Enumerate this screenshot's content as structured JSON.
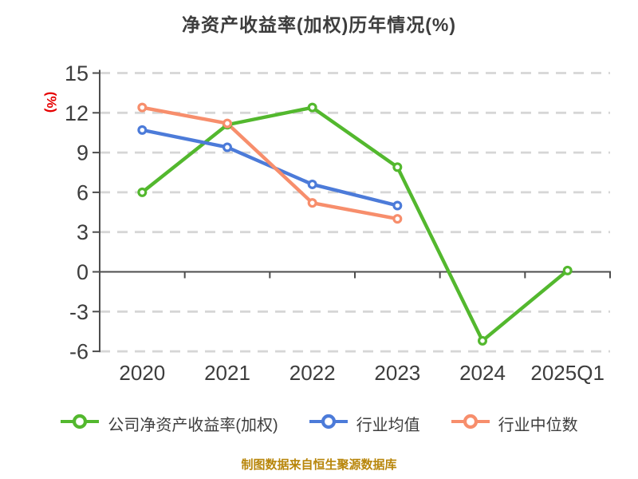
{
  "title": "净资产收益率(加权)历年情况(%)",
  "footer": "制图数据来自恒生聚源数据库",
  "colors": {
    "title_text": "#3d3d3d",
    "axis_line": "#4d4d4d",
    "tick_text": "#3d3d3d",
    "gridline": "#d6d6d6",
    "y_unit_red": "#e60000",
    "footer_gold": "#b8860b",
    "series_company": "#53b82e",
    "series_mean": "#4c7bd9",
    "series_median": "#f78e6c",
    "marker_fill": "#ffffff",
    "background": "#ffffff"
  },
  "chart_data": {
    "type": "line",
    "title": "净资产收益率(加权)历年情况(%)",
    "xlabel": "",
    "ylabel": "(%)",
    "categories": [
      "2020",
      "2021",
      "2022",
      "2023",
      "2024",
      "2025Q1"
    ],
    "series": [
      {
        "name": "公司净资产收益率(加权)",
        "color": "#53b82e",
        "values": [
          6.0,
          11.1,
          12.4,
          7.9,
          -5.2,
          0.1
        ]
      },
      {
        "name": "行业均值",
        "color": "#4c7bd9",
        "values": [
          10.7,
          9.4,
          6.6,
          5.0,
          null,
          null
        ]
      },
      {
        "name": "行业中位数",
        "color": "#f78e6c",
        "values": [
          12.4,
          11.2,
          5.2,
          4.0,
          null,
          null
        ]
      }
    ],
    "ylim": [
      -6,
      15
    ],
    "yticks": [
      15,
      12,
      9,
      6,
      3,
      0,
      -3,
      -6
    ],
    "grid": "horizontal-dashed",
    "legend_position": "bottom",
    "x_axis_on_zero": true
  },
  "legend": {
    "items": [
      "公司净资产收益率(加权)",
      "行业均值",
      "行业中位数"
    ]
  }
}
